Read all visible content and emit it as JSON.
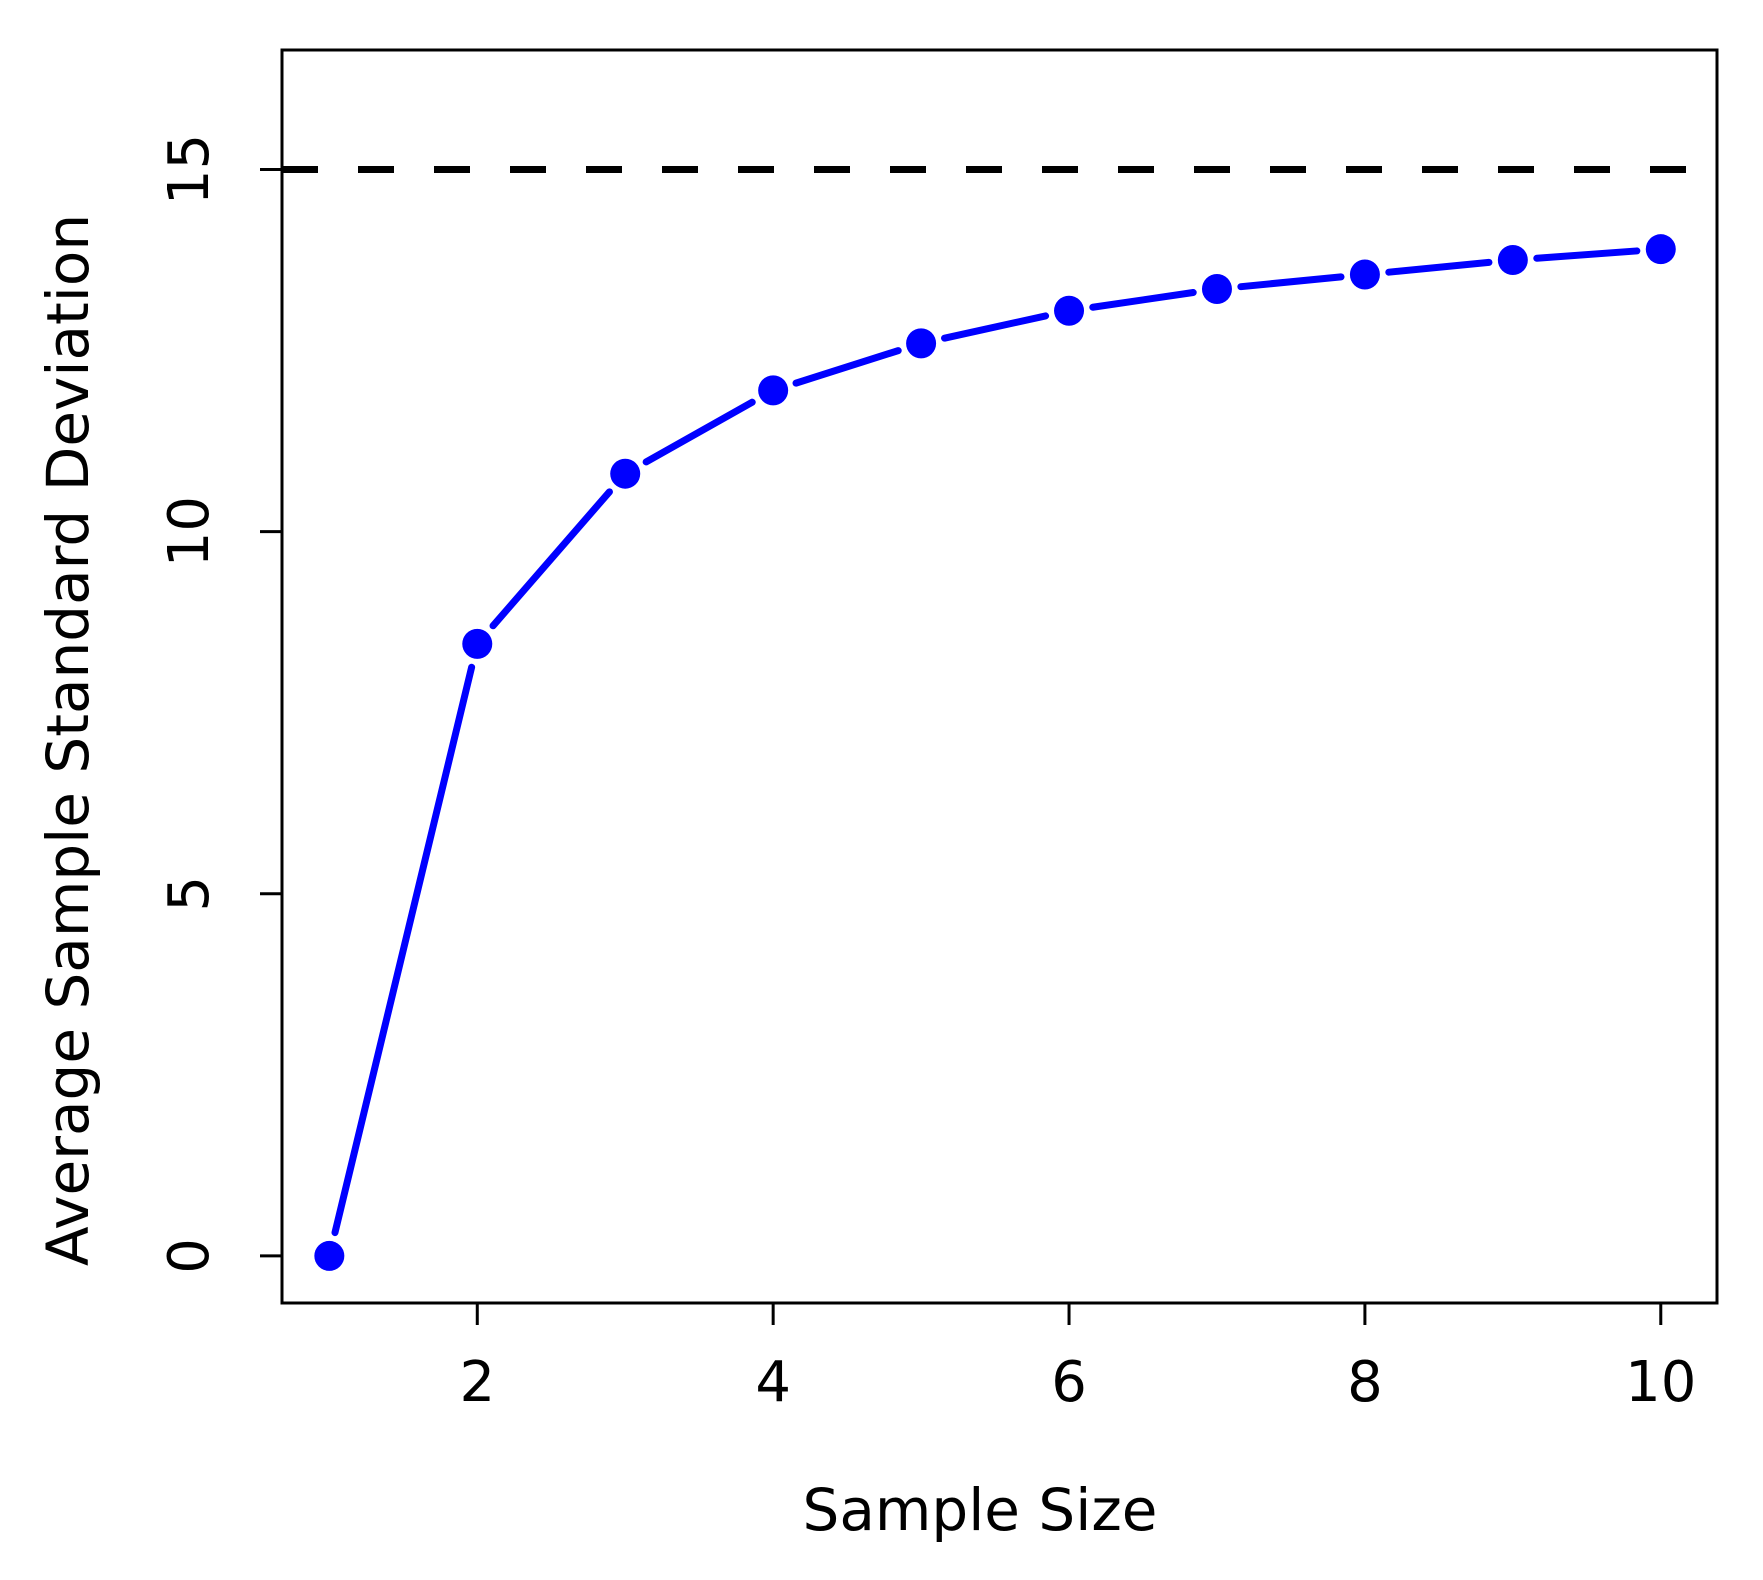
{
  "chart_data": {
    "type": "line",
    "title": "",
    "xlabel": "Sample Size",
    "ylabel": "Average Sample Standard Deviation",
    "x": [
      1,
      2,
      3,
      4,
      5,
      6,
      7,
      8,
      9,
      10
    ],
    "series": [
      {
        "values": [
          0,
          8.45,
          10.8,
          11.95,
          12.6,
          13.05,
          13.35,
          13.55,
          13.75,
          13.9
        ],
        "color": "#0000ff",
        "marker": "filled-circle"
      }
    ],
    "reference_lines": [
      {
        "y": 15,
        "style": "dashed",
        "color": "#000000"
      }
    ],
    "xticks": [
      2,
      4,
      6,
      8,
      10
    ],
    "yticks": [
      0,
      5,
      10,
      15
    ],
    "xlim": [
      0.68,
      10.38
    ],
    "ylim": [
      -0.65,
      16.65
    ],
    "grid": false,
    "legend": "none"
  }
}
